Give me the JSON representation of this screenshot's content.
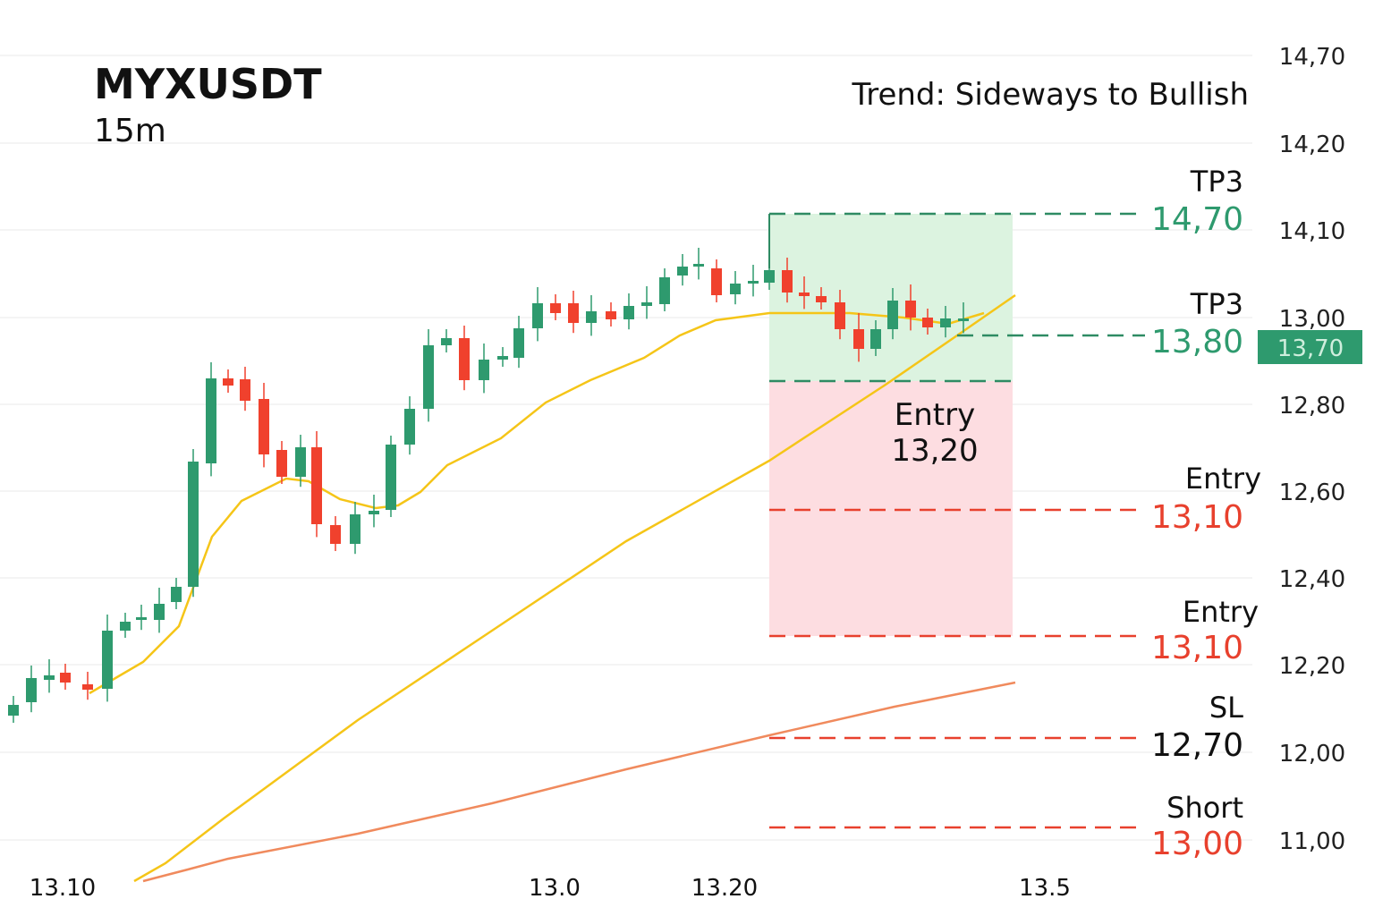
{
  "header": {
    "symbol": "MYXUSDT",
    "timeframe": "15m",
    "trend": "Trend: Sideways to Bullish"
  },
  "price_axis": [
    "14,70",
    "14,20",
    "14,10",
    "13,00",
    "12,80",
    "12,60",
    "12,40",
    "12,20",
    "12,00",
    "11,00"
  ],
  "time_axis": [
    "13.10",
    "13.0",
    "13.20",
    "13.5"
  ],
  "current_price": "13,70",
  "box_label": {
    "name": "Entry",
    "price": "13,20"
  },
  "levels": [
    {
      "name": "TP3",
      "price": "14,70"
    },
    {
      "name": "TP3",
      "price": "13,80"
    },
    {
      "name": "Entry",
      "price": "13,10"
    },
    {
      "name": "Entry",
      "price": "13,10"
    },
    {
      "name": "SL",
      "price": "12,70"
    },
    {
      "name": "Short",
      "price": "13,00"
    }
  ]
}
